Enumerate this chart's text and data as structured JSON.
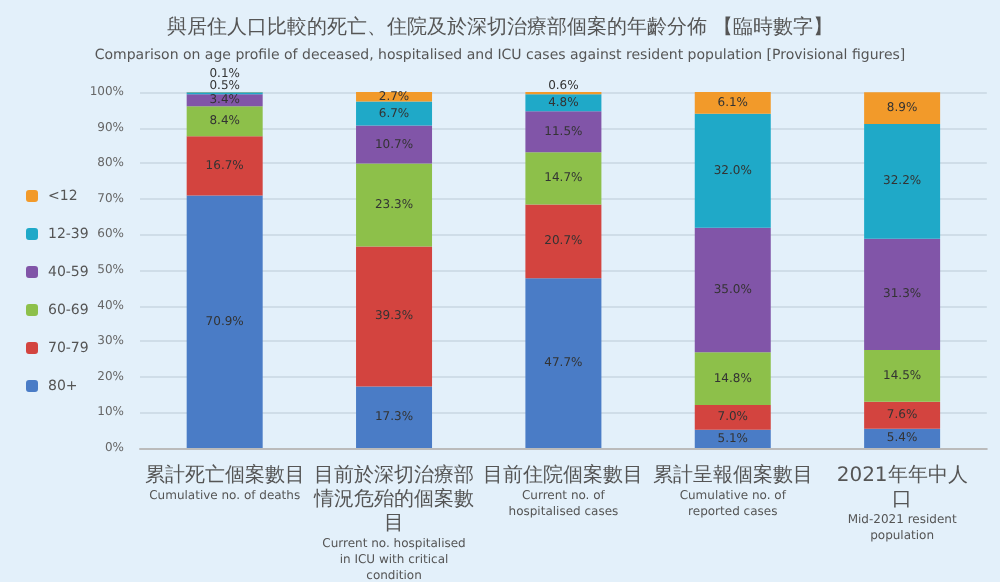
{
  "chart_data": {
    "type": "bar",
    "stacked": true,
    "title": "與居住人口比較的死亡、住院及於深切治療部個案的年齡分佈 【臨時數字】",
    "subtitle": "Comparison on age profile of deceased, hospitalised and ICU cases against resident population [Provisional figures]",
    "categories": [
      "累計死亡個案數目\nCumulative no. of deaths",
      "目前於深切治療部情況危殆的個案數目\nCurrent no. hospitalised in ICU with\ncritical condition",
      "目前住院個案數目\nCurrent no. of hospitalised cases",
      "累計呈報個案數目\nCumulative no. of reported cases",
      "2021年年中人口\nMid-2021 resident population"
    ],
    "series": [
      {
        "name": "80+",
        "color": "#4a7cc6",
        "values": [
          70.9,
          17.3,
          47.7,
          5.1,
          5.4
        ],
        "value_labels": [
          "70.9%",
          "17.3%",
          "47.7%",
          "5.1%",
          "5.4%"
        ]
      },
      {
        "name": "70-79",
        "color": "#d3443f",
        "values": [
          16.7,
          39.3,
          20.7,
          7.0,
          7.6
        ],
        "value_labels": [
          "16.7%",
          "39.3%",
          "20.7%",
          "7.0%",
          "7.6%"
        ]
      },
      {
        "name": "60-69",
        "color": "#8dc04a",
        "values": [
          8.4,
          23.3,
          14.7,
          14.8,
          14.5
        ],
        "value_labels": [
          "8.4%",
          "23.3%",
          "14.7%",
          "14.8%",
          "14.5%"
        ]
      },
      {
        "name": "40-59",
        "color": "#8155a8",
        "values": [
          3.4,
          10.7,
          11.5,
          35.0,
          31.3
        ],
        "value_labels": [
          "3.4%",
          "10.7%",
          "11.5%",
          "35.0%",
          "31.3%"
        ]
      },
      {
        "name": "12-39",
        "color": "#1fa9c8",
        "values": [
          0.5,
          6.7,
          4.8,
          32.0,
          32.2
        ],
        "value_labels": [
          "0.5%",
          "6.7%",
          "4.8%",
          "32.0%",
          "32.2%"
        ]
      },
      {
        "name": "<12",
        "color": "#f29a2a",
        "values": [
          0.1,
          2.7,
          0.6,
          6.1,
          8.9
        ],
        "value_labels": [
          "0.1%",
          "2.7%",
          "0.6%",
          "6.1%",
          "8.9%"
        ]
      }
    ],
    "ylim": [
      0,
      100
    ],
    "yticks": [
      {
        "value": 0,
        "label": "0%"
      },
      {
        "value": 10,
        "label": "10%"
      },
      {
        "value": 20,
        "label": "20%"
      },
      {
        "value": 30,
        "label": "30%"
      },
      {
        "value": 40,
        "label": "40%"
      },
      {
        "value": 50,
        "label": "50%"
      },
      {
        "value": 60,
        "label": "60%"
      },
      {
        "value": 70,
        "label": "70%"
      },
      {
        "value": 80,
        "label": "80%"
      },
      {
        "value": 90,
        "label": "90%"
      },
      {
        "value": 100,
        "label": "100%"
      }
    ],
    "grid": "y",
    "legend": "left"
  }
}
